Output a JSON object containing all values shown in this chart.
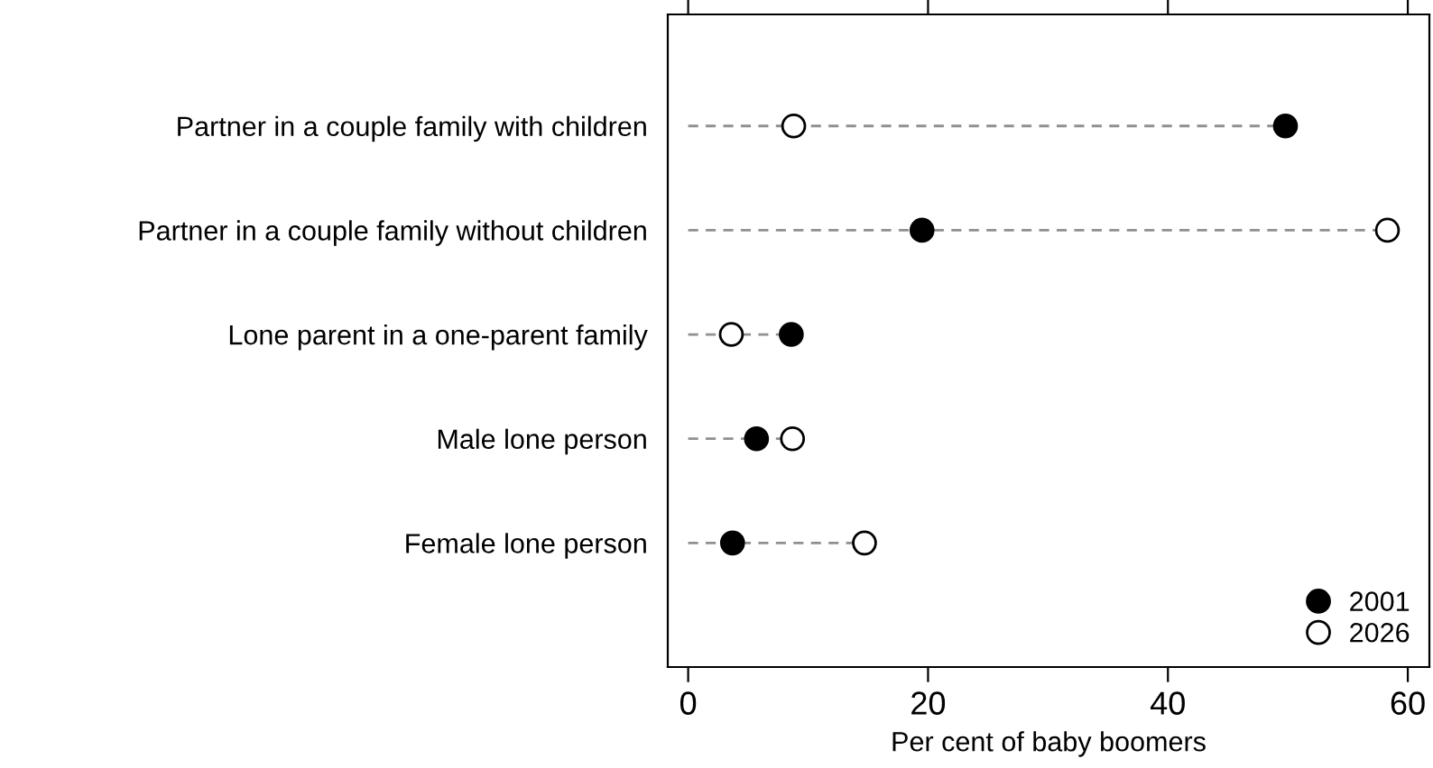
{
  "chart_data": {
    "type": "lollipop",
    "orientation": "horizontal",
    "xlabel": "Per cent of baby boomers",
    "categories": [
      "Partner in a couple family with children",
      "Partner in a couple family without children",
      "Lone parent in a one-parent family",
      "Male lone person",
      "Female lone person"
    ],
    "series": [
      {
        "name": "2001",
        "color": "#000000",
        "marker": "circle",
        "values": [
          49.8,
          19.5,
          8.6,
          5.7,
          3.7
        ]
      },
      {
        "name": "2026",
        "color": "#ffffff",
        "marker": "circle",
        "values": [
          8.8,
          58.3,
          3.6,
          8.7,
          14.7
        ]
      }
    ],
    "xlim": [
      -1.7,
      61.8
    ],
    "xticks": [
      0,
      20,
      40,
      60
    ],
    "line_style": "dashed",
    "grid": false,
    "legend": "bottom right"
  }
}
